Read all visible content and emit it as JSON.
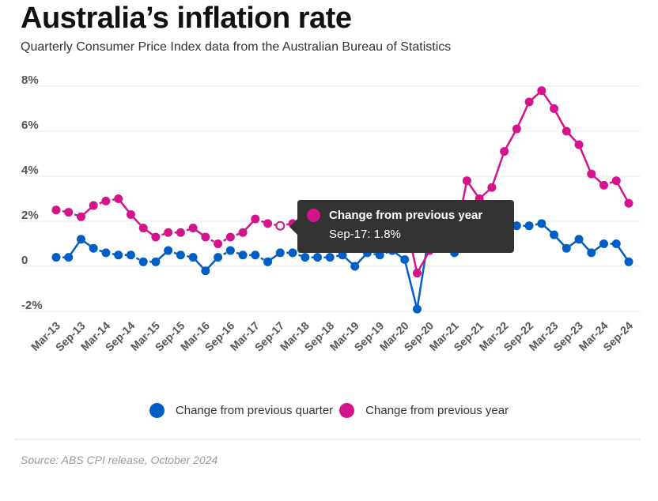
{
  "header": {
    "title": "Australia’s inflation rate",
    "subtitle": "Quarterly Consumer Price Index data from the Australian Bureau of Statistics"
  },
  "colors": {
    "quarter": "#005ec4",
    "year": "#d4148c",
    "grid": "#ebebeb",
    "tooltip_bg": "#333333"
  },
  "tooltip": {
    "series_icon": "dot-icon",
    "title": "Change from previous year",
    "value": "Sep-17: 1.8%"
  },
  "legend": {
    "items": [
      {
        "label": "Change from previous quarter",
        "icon": "dot-icon"
      },
      {
        "label": "Change from previous year",
        "icon": "dot-icon"
      }
    ]
  },
  "footer": {
    "source": "Source: ABS CPI release, October 2024"
  },
  "chart_data": {
    "type": "line",
    "title": "Australia’s inflation rate",
    "subtitle": "Quarterly Consumer Price Index data from the Australian Bureau of Statistics",
    "xlabel": "",
    "ylabel": "",
    "ylim": [
      -2,
      8
    ],
    "yticks": [
      -2,
      0,
      2,
      4,
      6,
      8
    ],
    "ytick_labels": [
      "-2%",
      "0",
      "2%",
      "4%",
      "6%",
      "8%"
    ],
    "grid": true,
    "legend_position": "bottom",
    "x": [
      "Mar-13",
      "Jun-13",
      "Sep-13",
      "Dec-13",
      "Mar-14",
      "Jun-14",
      "Sep-14",
      "Dec-14",
      "Mar-15",
      "Jun-15",
      "Sep-15",
      "Dec-15",
      "Mar-16",
      "Jun-16",
      "Sep-16",
      "Dec-16",
      "Mar-17",
      "Jun-17",
      "Sep-17",
      "Dec-17",
      "Mar-18",
      "Jun-18",
      "Sep-18",
      "Dec-18",
      "Mar-19",
      "Jun-19",
      "Sep-19",
      "Dec-19",
      "Mar-20",
      "Jun-20",
      "Sep-20",
      "Dec-20",
      "Mar-21",
      "Jun-21",
      "Sep-21",
      "Dec-21",
      "Mar-22",
      "Jun-22",
      "Sep-22",
      "Dec-22",
      "Mar-23",
      "Jun-23",
      "Sep-23",
      "Dec-23",
      "Mar-24",
      "Jun-24",
      "Sep-24"
    ],
    "xtick_labels": [
      "Mar-13",
      "Sep-13",
      "Mar-14",
      "Sep-14",
      "Mar-15",
      "Sep-15",
      "Mar-16",
      "Sep-16",
      "Mar-17",
      "Sep-17",
      "Mar-18",
      "Sep-18",
      "Mar-19",
      "Sep-19",
      "Mar-20",
      "Sep-20",
      "Mar-21",
      "Sep-21",
      "Mar-22",
      "Sep-22",
      "Mar-23",
      "Sep-23",
      "Mar-24",
      "Sep-24"
    ],
    "series": [
      {
        "name": "Change from previous quarter",
        "color": "#005ec4",
        "values": [
          0.4,
          0.4,
          1.2,
          0.8,
          0.6,
          0.5,
          0.5,
          0.2,
          0.2,
          0.7,
          0.5,
          0.4,
          -0.2,
          0.4,
          0.7,
          0.5,
          0.5,
          0.2,
          0.6,
          0.6,
          0.4,
          0.4,
          0.4,
          0.5,
          0.0,
          0.6,
          0.5,
          0.7,
          0.3,
          -1.9,
          1.6,
          0.9,
          0.6,
          0.8,
          0.8,
          1.3,
          2.1,
          1.8,
          1.8,
          1.9,
          1.4,
          0.8,
          1.2,
          0.6,
          1.0,
          1.0,
          0.2
        ]
      },
      {
        "name": "Change from previous year",
        "color": "#d4148c",
        "values": [
          2.5,
          2.4,
          2.2,
          2.7,
          2.9,
          3.0,
          2.3,
          1.7,
          1.3,
          1.5,
          1.5,
          1.7,
          1.3,
          1.0,
          1.3,
          1.5,
          2.1,
          1.9,
          1.8,
          1.9,
          1.9,
          2.1,
          1.9,
          1.8,
          1.3,
          1.6,
          1.7,
          1.8,
          2.2,
          -0.3,
          0.7,
          0.9,
          1.1,
          3.8,
          3.0,
          3.5,
          5.1,
          6.1,
          7.3,
          7.8,
          7.0,
          6.0,
          5.4,
          4.1,
          3.6,
          3.8,
          2.8
        ]
      }
    ],
    "highlighted_point": {
      "series": "Change from previous year",
      "x": "Sep-17",
      "value": 1.8
    }
  }
}
